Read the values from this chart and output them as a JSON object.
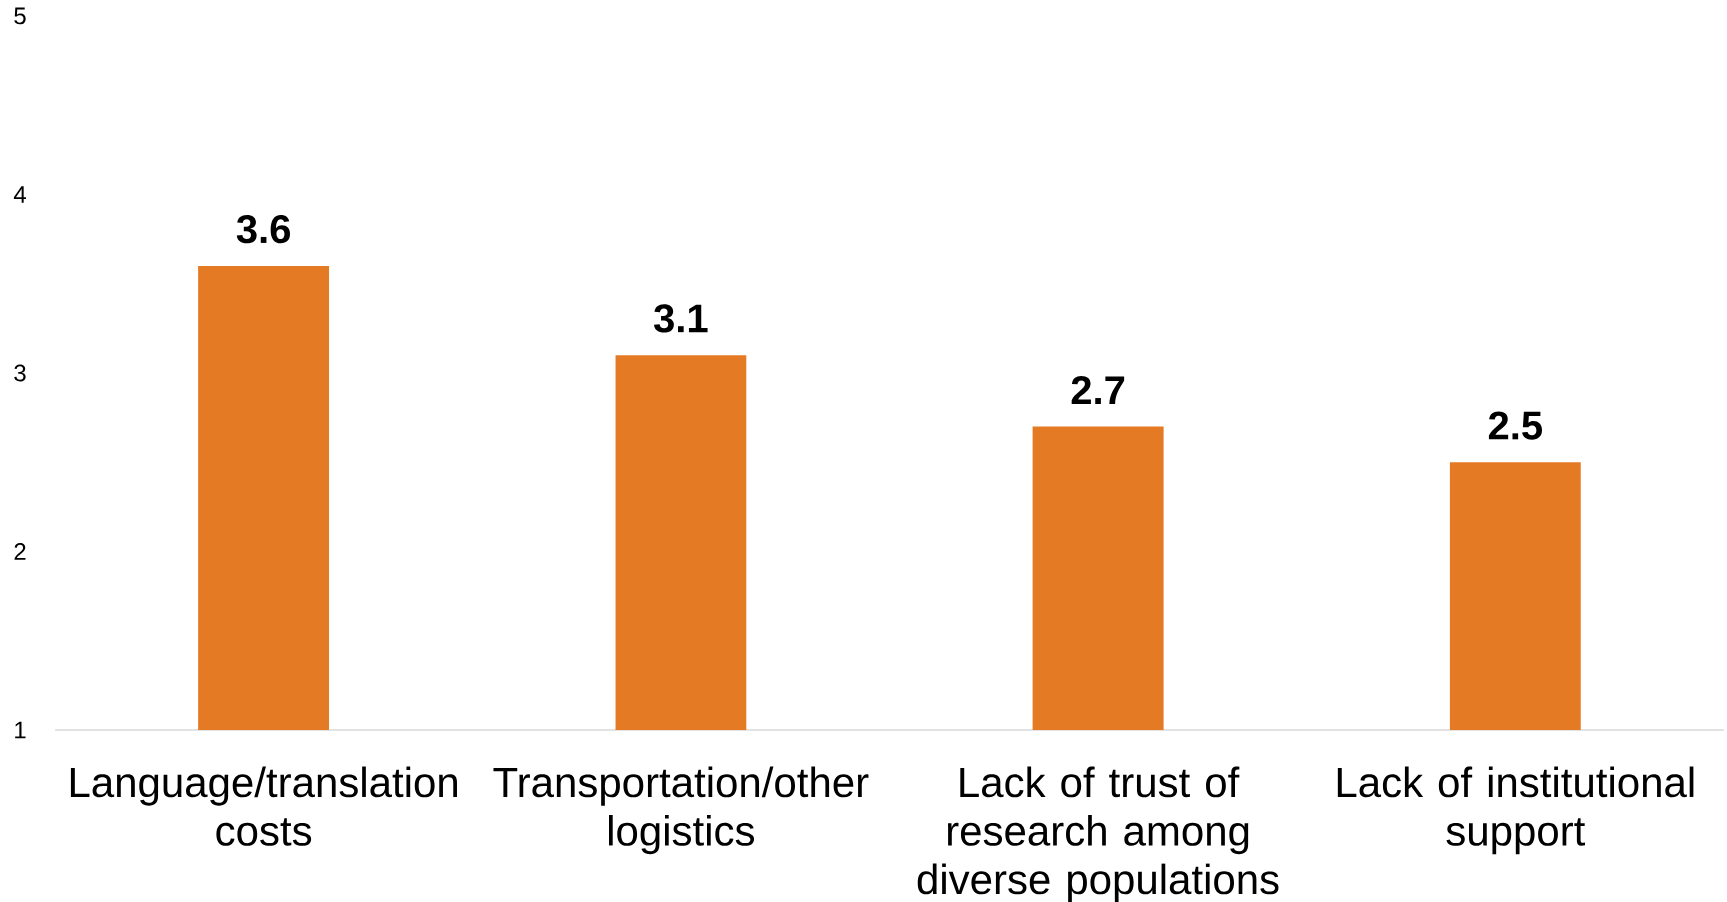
{
  "chart_data": {
    "type": "bar",
    "categories": [
      "Language/translation costs",
      "Transportation/other logistics",
      "Lack of trust of research among diverse populations",
      "Lack of institutional support"
    ],
    "values": [
      3.6,
      3.1,
      2.7,
      2.5
    ],
    "color": "#e57a25",
    "ylim": [
      1,
      5
    ],
    "yticks": [
      1,
      2,
      3,
      4,
      5
    ],
    "data_labels": true
  }
}
